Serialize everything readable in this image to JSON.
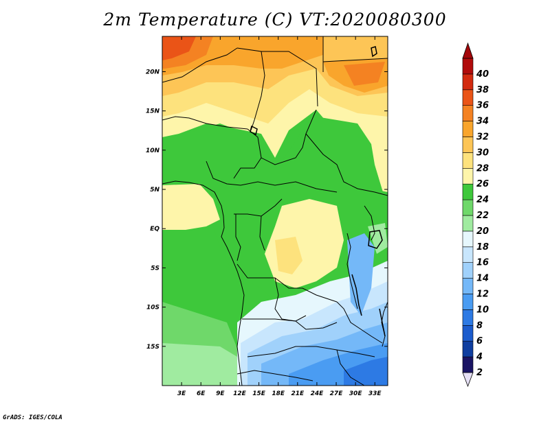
{
  "title": "2m Temperature (C) VT:2020080300",
  "credit": "GrADS: IGES/COLA",
  "map": {
    "lat_labels": [
      {
        "label": "20N",
        "lat": 20
      },
      {
        "label": "15N",
        "lat": 15
      },
      {
        "label": "10N",
        "lat": 10
      },
      {
        "label": "5N",
        "lat": 5
      },
      {
        "label": "EQ",
        "lat": 0
      },
      {
        "label": "5S",
        "lat": -5
      },
      {
        "label": "10S",
        "lat": -10
      },
      {
        "label": "15S",
        "lat": -15
      }
    ],
    "lon_labels": [
      {
        "label": "3E",
        "lon": 3
      },
      {
        "label": "6E",
        "lon": 6
      },
      {
        "label": "9E",
        "lon": 9
      },
      {
        "label": "12E",
        "lon": 12
      },
      {
        "label": "15E",
        "lon": 15
      },
      {
        "label": "18E",
        "lon": 18
      },
      {
        "label": "21E",
        "lon": 21
      },
      {
        "label": "24E",
        "lon": 24
      },
      {
        "label": "27E",
        "lon": 27
      },
      {
        "label": "30E",
        "lon": 30
      },
      {
        "label": "33E",
        "lon": 33
      }
    ],
    "lon_range": [
      0,
      35
    ],
    "lat_range": [
      -20,
      24.5
    ]
  },
  "colorbar": {
    "levels": [
      "2",
      "4",
      "6",
      "8",
      "10",
      "12",
      "14",
      "16",
      "18",
      "20",
      "22",
      "24",
      "26",
      "28",
      "30",
      "32",
      "34",
      "36",
      "38",
      "40"
    ],
    "colors": [
      "#1a1464",
      "#0f3ea0",
      "#1c5ccd",
      "#2d7ae4",
      "#4a9cf2",
      "#74b8f8",
      "#a0d1fb",
      "#c8e6fd",
      "#e6f7fd",
      "#a0eba0",
      "#6fd86a",
      "#3ec83b",
      "#fef5aa",
      "#fde27d",
      "#fdc556",
      "#f9a52c",
      "#f48222",
      "#ea5417",
      "#d32a0f",
      "#b10b0b"
    ],
    "low_color": "#e6e0f5",
    "high_color": "#a4060a"
  }
}
